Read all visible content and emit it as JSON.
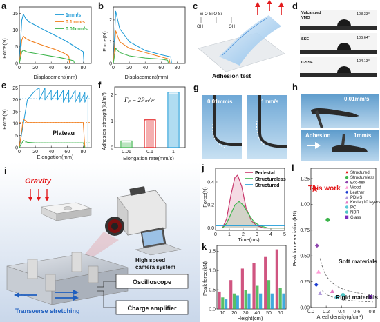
{
  "panels": {
    "a": {
      "label": "a",
      "xlabel": "Displacement(mm)",
      "ylabel": "Force(N)",
      "xticks": [
        "0",
        "20",
        "40",
        "60",
        "80"
      ],
      "yticks": [
        "0",
        "5",
        "10",
        "15"
      ],
      "legend": [
        "1mm/s",
        "0.1mm/s",
        "0.01mm/s"
      ]
    },
    "b": {
      "label": "b",
      "xlabel": "Displacement(mm)",
      "ylabel": "Force(N)",
      "xticks": [
        "0",
        "20",
        "40",
        "60",
        "80"
      ],
      "yticks": [
        "0",
        "1",
        "2"
      ]
    },
    "c": {
      "label": "c",
      "caption": "Adhesion test",
      "chem": "Si  O  Si  O  Si",
      "oh": "OH"
    },
    "d": {
      "label": "d",
      "rows": [
        {
          "name": "Vulcanized VMQ",
          "angle": "108.33°"
        },
        {
          "name": "SSE",
          "angle": "106.64°"
        },
        {
          "name": "C-SSE",
          "angle": "104.13°"
        }
      ]
    },
    "e": {
      "label": "e",
      "xlabel": "Elongation(mm)",
      "ylabel": "Force(N)",
      "xticks": [
        "0",
        "20",
        "40",
        "60",
        "80"
      ],
      "yticks": [
        "0",
        "5",
        "10",
        "15",
        "20",
        "25"
      ],
      "annotation": "Plateau"
    },
    "f": {
      "label": "f",
      "formula": "Γₚ = 2Pₘ/w",
      "xlabel": "Elongation rate(mm/s)",
      "ylabel": "Adhesion strength(kJ/m²)",
      "yticks": [
        "0",
        "1",
        "2"
      ]
    },
    "g": {
      "label": "g",
      "left_label": "0.01mm/s",
      "right_label": "1mm/s"
    },
    "h": {
      "label": "h",
      "top_label": "0.01mm/s",
      "bottom_label": "1mm/s",
      "adhesion": "Adhesion"
    },
    "i": {
      "label": "i",
      "gravity": "Gravity",
      "camera": "High speed camera system",
      "oscilloscope": "Oscilloscope",
      "amplifier": "Charge amplifier",
      "stretching": "Transverse stretching"
    },
    "j": {
      "label": "j",
      "xlabel": "Time(ms)",
      "ylabel": "Force(N)",
      "xticks": [
        "0",
        "1",
        "2",
        "3",
        "4",
        "5"
      ],
      "yticks": [
        "0.0",
        "0.2",
        "0.4"
      ],
      "legend": [
        "Pedestal",
        "Structureless",
        "Structured"
      ]
    },
    "k": {
      "label": "k",
      "xlabel": "Height(cm)",
      "ylabel": "Peak force(kN)",
      "yticks": [
        "0.0",
        "0.5",
        "1.0",
        "1.5"
      ]
    },
    "l": {
      "label": "l",
      "xlabel": "Areal density(g/cm²)",
      "ylabel": "Peak force variation(kN)",
      "xticks": [
        "0.0",
        "0.2",
        "0.4",
        "0.6",
        "0.8"
      ],
      "yticks": [
        "0.00",
        "0.25",
        "0.50",
        "0.75",
        "1.00",
        "1.25"
      ],
      "this_work": "This work",
      "soft": "Soft materials",
      "rigid": "Rigid materials"
    }
  },
  "colors": {
    "blue": "#1e9bd7",
    "orange": "#f07d1a",
    "green": "#3cb44b",
    "pink": "#c8376b",
    "red": "#e31a1c"
  },
  "chart_data": [
    {
      "panel": "a",
      "type": "line",
      "xlim": [
        0,
        90
      ],
      "ylim": [
        0,
        17
      ],
      "series": [
        {
          "name": "1mm/s",
          "x": [
            0,
            3,
            5,
            8,
            12,
            20,
            30,
            40,
            50,
            60,
            70,
            80,
            81
          ],
          "y": [
            0,
            13,
            14.8,
            13.5,
            12.5,
            11.5,
            10.2,
            9,
            7.8,
            6.5,
            5,
            3.5,
            0
          ]
        },
        {
          "name": "0.1mm/s",
          "x": [
            0,
            3,
            5,
            8,
            15,
            25,
            35,
            45,
            55,
            62,
            63
          ],
          "y": [
            0,
            7,
            8.2,
            7.5,
            6.7,
            5.8,
            5,
            4.2,
            3.2,
            2.2,
            0
          ]
        },
        {
          "name": "0.01mm/s",
          "x": [
            0,
            3,
            5,
            10,
            20,
            30,
            40,
            50,
            60,
            68,
            69
          ],
          "y": [
            0,
            3.5,
            4,
            3.4,
            3,
            2.6,
            2.2,
            1.8,
            1.3,
            0.8,
            0
          ]
        }
      ]
    },
    {
      "panel": "b",
      "type": "line",
      "xlim": [
        0,
        90
      ],
      "ylim": [
        0,
        2.6
      ],
      "series": [
        {
          "x": [
            0,
            3,
            8,
            20,
            40,
            60,
            72,
            73
          ],
          "y": [
            0,
            2.4,
            1.6,
            1.0,
            0.6,
            0.4,
            0.3,
            0
          ]
        },
        {
          "x": [
            0,
            3,
            8,
            20,
            40,
            60,
            70,
            71
          ],
          "y": [
            0,
            1.5,
            1.0,
            0.7,
            0.5,
            0.3,
            0.2,
            0
          ]
        },
        {
          "x": [
            0,
            3,
            8,
            20,
            40,
            60,
            68,
            69
          ],
          "y": [
            0,
            0.7,
            0.5,
            0.35,
            0.25,
            0.2,
            0.15,
            0
          ]
        }
      ]
    },
    {
      "panel": "e",
      "type": "line",
      "xlim": [
        0,
        90
      ],
      "ylim": [
        0,
        26
      ],
      "series": [
        {
          "x": [
            0,
            10,
            20,
            25,
            25,
            32,
            32,
            40,
            40,
            48,
            48,
            55,
            55,
            62,
            62,
            70,
            70,
            76,
            76,
            82,
            82,
            86,
            86
          ],
          "y": [
            0,
            20,
            24,
            25,
            20,
            25,
            20,
            24,
            20,
            24,
            20,
            24,
            19,
            24,
            19,
            24,
            19,
            23,
            19,
            23,
            19,
            22,
            0
          ]
        },
        {
          "x": [
            0,
            5,
            10,
            20,
            40,
            60,
            80,
            82
          ],
          "y": [
            0,
            12,
            10.5,
            10.5,
            10.5,
            10.5,
            10.5,
            0
          ]
        },
        {
          "x": [
            0,
            5,
            10,
            20,
            40,
            60,
            80,
            82
          ],
          "y": [
            0,
            3,
            2.2,
            2,
            2,
            2,
            2,
            0
          ]
        }
      ]
    },
    {
      "panel": "f",
      "type": "bar",
      "categories": [
        "0.01",
        "0.1",
        "1"
      ],
      "values": [
        0.25,
        1.05,
        2.1
      ],
      "ylim": [
        0,
        2.3
      ]
    },
    {
      "panel": "j",
      "type": "line",
      "xlim": [
        0,
        5
      ],
      "ylim": [
        -0.02,
        0.52
      ],
      "series": [
        {
          "name": "Pedestal",
          "x": [
            0.5,
            0.8,
            1.1,
            1.4,
            1.6,
            1.9,
            2.2,
            2.6,
            3.0,
            3.5,
            4.0,
            5.0
          ],
          "y": [
            0.0,
            0.08,
            0.28,
            0.44,
            0.46,
            0.36,
            0.18,
            0.06,
            0.02,
            0.0,
            0.0,
            0.0
          ]
        },
        {
          "name": "Structureless",
          "x": [
            0.5,
            0.8,
            1.1,
            1.4,
            1.7,
            2.0,
            2.4,
            2.8,
            3.2,
            3.8,
            5.0
          ],
          "y": [
            0.0,
            0.04,
            0.12,
            0.2,
            0.23,
            0.2,
            0.12,
            0.05,
            0.02,
            0.0,
            0.0
          ]
        },
        {
          "name": "Structured",
          "x": [
            0.0,
            1.0,
            2.0,
            3.0,
            4.0,
            5.0
          ],
          "y": [
            0.02,
            0.02,
            0.02,
            0.02,
            0.02,
            0.02
          ]
        }
      ]
    },
    {
      "panel": "k",
      "type": "bar",
      "categories": [
        "10",
        "20",
        "30",
        "40",
        "50",
        "60"
      ],
      "ylim": [
        0,
        1.65
      ],
      "series": [
        {
          "name": "Pedestal",
          "values": [
            0.45,
            0.75,
            1.05,
            1.2,
            1.35,
            1.55
          ]
        },
        {
          "name": "Structureless",
          "values": [
            0.3,
            0.4,
            0.5,
            0.6,
            0.75,
            0.55
          ]
        },
        {
          "name": "Structured",
          "values": [
            0.25,
            0.35,
            0.4,
            0.4,
            0.4,
            0.4
          ]
        }
      ]
    },
    {
      "panel": "l",
      "type": "scatter",
      "xlim": [
        0,
        0.85
      ],
      "ylim": [
        0,
        1.35
      ],
      "series": [
        {
          "name": "Structured",
          "x": [
            0.05
          ],
          "y": [
            1.15
          ],
          "color": "#e31a1c",
          "marker": "star"
        },
        {
          "name": "Structureless",
          "x": [
            0.22
          ],
          "y": [
            0.85
          ],
          "color": "#3cb44b",
          "marker": "circle"
        },
        {
          "name": "Eco-flex",
          "x": [
            0.08
          ],
          "y": [
            0.6
          ],
          "color": "#8e44ad",
          "marker": "diamond"
        },
        {
          "name": "Wood",
          "x": [
            0.1
          ],
          "y": [
            0.35
          ],
          "color": "#ff9ad5",
          "marker": "triangle"
        },
        {
          "name": "Leather",
          "x": [
            0.07
          ],
          "y": [
            0.22
          ],
          "color": "#1a3bd1",
          "marker": "diamond"
        },
        {
          "name": "PDMS",
          "x": [
            0.12
          ],
          "y": [
            0.14
          ],
          "color": "#b39ddb",
          "marker": "triangle"
        },
        {
          "name": "Kevlar(10 layers)",
          "x": [
            0.28
          ],
          "y": [
            0.16
          ],
          "color": "#e377c2",
          "marker": "triangle"
        },
        {
          "name": "PC",
          "x": [
            0.34
          ],
          "y": [
            0.1
          ],
          "color": "#5bc8d8",
          "marker": "circle"
        },
        {
          "name": "NBR",
          "x": [
            0.42
          ],
          "y": [
            0.12
          ],
          "color": "#4ec3c3",
          "marker": "circle"
        },
        {
          "name": "Glass",
          "x": [
            0.78
          ],
          "y": [
            0.1
          ],
          "color": "#7b2cbf",
          "marker": "square"
        }
      ]
    }
  ]
}
